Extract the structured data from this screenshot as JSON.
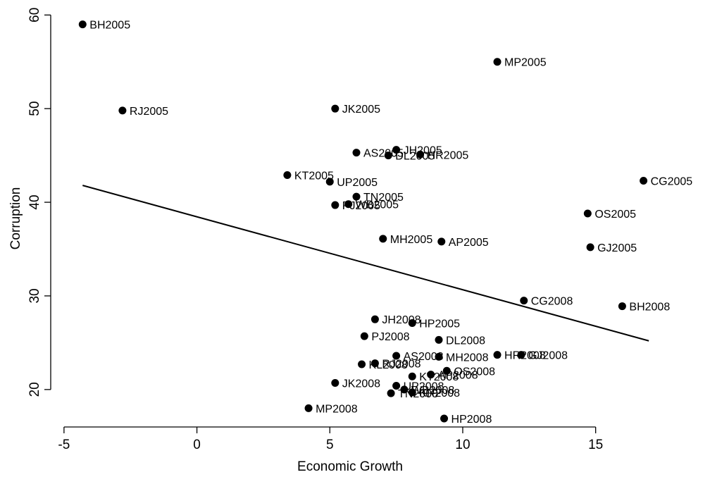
{
  "chart_data": {
    "type": "scatter",
    "xlabel": "Economic Growth",
    "ylabel": "Corruption",
    "xlim": [
      -5.5,
      17.5
    ],
    "ylim": [
      16,
      61
    ],
    "xticks": [
      -5,
      0,
      5,
      10,
      15
    ],
    "yticks": [
      20,
      30,
      40,
      50,
      60
    ],
    "grid": false,
    "marker_color": "#000000",
    "fit_line": {
      "x": [
        -4.3,
        17.0
      ],
      "y": [
        41.8,
        25.2
      ]
    },
    "points": [
      {
        "label": "BH2005",
        "x": -4.3,
        "y": 59.0
      },
      {
        "label": "RJ2005",
        "x": -2.8,
        "y": 49.8
      },
      {
        "label": "MP2005",
        "x": 11.3,
        "y": 55.0
      },
      {
        "label": "JK2005",
        "x": 5.2,
        "y": 50.0
      },
      {
        "label": "AS2005",
        "x": 6.0,
        "y": 45.3
      },
      {
        "label": "JH2005",
        "x": 7.5,
        "y": 45.6
      },
      {
        "label": "DL2005",
        "x": 7.2,
        "y": 45.0
      },
      {
        "label": "HR2005",
        "x": 8.4,
        "y": 45.1
      },
      {
        "label": "KT2005",
        "x": 3.4,
        "y": 42.9
      },
      {
        "label": "UP2005",
        "x": 5.0,
        "y": 42.2
      },
      {
        "label": "TN2005",
        "x": 6.0,
        "y": 40.6
      },
      {
        "label": "PJ2005",
        "x": 5.2,
        "y": 39.7
      },
      {
        "label": "WB2005",
        "x": 5.7,
        "y": 39.8
      },
      {
        "label": "CG2005",
        "x": 16.8,
        "y": 42.3
      },
      {
        "label": "OS2005",
        "x": 14.7,
        "y": 38.8
      },
      {
        "label": "MH2005",
        "x": 7.0,
        "y": 36.1
      },
      {
        "label": "AP2005",
        "x": 9.2,
        "y": 35.8
      },
      {
        "label": "GJ2005",
        "x": 14.8,
        "y": 35.2
      },
      {
        "label": "CG2008",
        "x": 12.3,
        "y": 29.5
      },
      {
        "label": "BH2008",
        "x": 16.0,
        "y": 28.9
      },
      {
        "label": "JH2008",
        "x": 6.7,
        "y": 27.5
      },
      {
        "label": "HP2005",
        "x": 8.1,
        "y": 27.1
      },
      {
        "label": "PJ2008",
        "x": 6.3,
        "y": 25.7
      },
      {
        "label": "DL2008",
        "x": 9.1,
        "y": 25.3
      },
      {
        "label": "AS2008",
        "x": 7.5,
        "y": 23.6
      },
      {
        "label": "MH2008",
        "x": 9.1,
        "y": 23.5
      },
      {
        "label": "HR2008",
        "x": 11.3,
        "y": 23.7
      },
      {
        "label": "GJ2008",
        "x": 12.2,
        "y": 23.7
      },
      {
        "label": "KL2008",
        "x": 6.2,
        "y": 22.7
      },
      {
        "label": "RJ2008",
        "x": 6.7,
        "y": 22.8
      },
      {
        "label": "OS2008",
        "x": 9.4,
        "y": 22.0
      },
      {
        "label": "AP2008",
        "x": 8.8,
        "y": 21.6
      },
      {
        "label": "KT2008",
        "x": 8.1,
        "y": 21.4
      },
      {
        "label": "JK2008",
        "x": 5.2,
        "y": 20.7
      },
      {
        "label": "UP2008",
        "x": 7.5,
        "y": 20.4
      },
      {
        "label": "WB2008",
        "x": 7.8,
        "y": 20.0
      },
      {
        "label": "MP2008",
        "x": 4.2,
        "y": 18.0
      },
      {
        "label": "TN2008",
        "x": 7.3,
        "y": 19.6
      },
      {
        "label": "KR2008",
        "x": 8.1,
        "y": 19.7
      },
      {
        "label": "HP2008",
        "x": 9.3,
        "y": 16.9
      }
    ]
  }
}
